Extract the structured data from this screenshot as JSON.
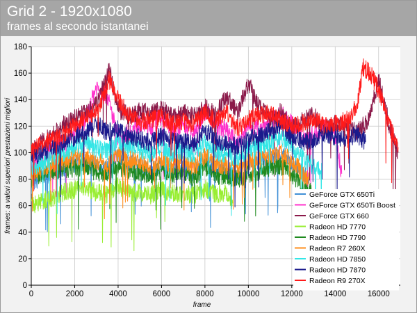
{
  "header": {
    "title": "Grid 2 - 1920x1080",
    "subtitle": "frames al secondo istantanei"
  },
  "chart_data": {
    "type": "line",
    "title": "Grid 2 - 1920x1080",
    "subtitle": "frames al secondo istantanei",
    "xlabel": "frame",
    "ylabel": "frames: a valori superiori prestazioni migliori",
    "xlim": [
      0,
      17000
    ],
    "ylim": [
      0,
      180
    ],
    "xticks": [
      0,
      2000,
      4000,
      6000,
      8000,
      10000,
      12000,
      14000,
      16000
    ],
    "yticks": [
      0,
      20,
      40,
      60,
      80,
      100,
      120,
      140,
      160,
      180
    ],
    "grid": true,
    "legend_position": "bottom-right",
    "series": [
      {
        "name": "GeForce GTX 650Ti",
        "color": "#3f8fd6",
        "x": [
          0,
          500,
          1000,
          1500,
          2000,
          2500,
          3000,
          3500,
          4000,
          4500,
          5000,
          5500,
          6000,
          6500,
          7000,
          7500,
          8000,
          8500,
          9000,
          9500,
          10000,
          10500,
          11000,
          11500,
          12000,
          12500,
          12800
        ],
        "y": [
          76,
          82,
          85,
          88,
          92,
          96,
          90,
          88,
          98,
          93,
          90,
          86,
          91,
          87,
          89,
          84,
          96,
          87,
          86,
          82,
          90,
          93,
          96,
          99,
          92,
          85,
          78
        ]
      },
      {
        "name": "GeForce GTX 650Ti Boost",
        "color": "#ff33cc",
        "x": [
          0,
          500,
          1000,
          1500,
          2000,
          2500,
          3000,
          3500,
          4000,
          4500,
          5000,
          5500,
          6000,
          6500,
          7000,
          7500,
          8000,
          8500,
          9000,
          9500,
          10000,
          10500,
          11000,
          11500,
          12000,
          12500,
          13000,
          13500,
          14000,
          14300
        ],
        "y": [
          90,
          96,
          103,
          108,
          114,
          125,
          150,
          143,
          112,
          115,
          122,
          119,
          128,
          116,
          122,
          115,
          131,
          121,
          117,
          106,
          120,
          119,
          123,
          129,
          122,
          112,
          113,
          120,
          113,
          84
        ]
      },
      {
        "name": "GeForce GTX 660",
        "color": "#8b1a4a",
        "x": [
          0,
          500,
          1000,
          1500,
          2000,
          2500,
          3000,
          3300,
          3600,
          4000,
          4500,
          5000,
          5500,
          6000,
          6500,
          7000,
          7500,
          8000,
          8500,
          9000,
          9500,
          10000,
          10500,
          11000,
          11500,
          12000,
          12500,
          13000,
          13500,
          14000,
          14500,
          15000,
          15500,
          16000,
          16500,
          16900
        ],
        "y": [
          100,
          108,
          114,
          121,
          126,
          130,
          136,
          150,
          163,
          132,
          128,
          131,
          130,
          133,
          127,
          130,
          127,
          134,
          129,
          143,
          130,
          152,
          134,
          126,
          131,
          118,
          124,
          128,
          118,
          122,
          119,
          115,
          124,
          155,
          120,
          100
        ]
      },
      {
        "name": "Radeon HD 7770",
        "color": "#99ee33",
        "x": [
          0,
          500,
          1000,
          1500,
          2000,
          2500,
          3000,
          3500,
          4000,
          4500,
          5000,
          5500,
          6000,
          6500,
          7000,
          7500,
          8000,
          8500,
          9000,
          9300
        ],
        "y": [
          60,
          64,
          66,
          70,
          72,
          74,
          70,
          68,
          75,
          69,
          70,
          68,
          72,
          69,
          70,
          68,
          73,
          69,
          70,
          63
        ]
      },
      {
        "name": "Radeon HD 7790",
        "color": "#1f8a1f",
        "x": [
          0,
          500,
          1000,
          1500,
          2000,
          2500,
          3000,
          3500,
          4000,
          4500,
          5000,
          5500,
          6000,
          6500,
          7000,
          7500,
          8000,
          8500,
          9000,
          9500,
          10000,
          10500,
          11000,
          11500,
          12000,
          12500,
          12900
        ],
        "y": [
          80,
          85,
          86,
          88,
          88,
          90,
          85,
          84,
          90,
          86,
          85,
          82,
          87,
          83,
          85,
          81,
          90,
          83,
          82,
          80,
          84,
          86,
          89,
          90,
          84,
          75,
          70
        ]
      },
      {
        "name": "Radeon R7 260X",
        "color": "#ff8c1a",
        "x": [
          0,
          500,
          1000,
          1500,
          2000,
          2500,
          3000,
          3500,
          4000,
          4500,
          5000,
          5500,
          6000,
          6500,
          7000,
          7500,
          8000,
          8500,
          9000,
          9500,
          10000,
          10500,
          11000,
          11500,
          12000,
          12500,
          12800
        ],
        "y": [
          84,
          88,
          92,
          94,
          96,
          98,
          94,
          92,
          100,
          95,
          94,
          90,
          95,
          91,
          93,
          89,
          98,
          91,
          90,
          88,
          93,
          95,
          98,
          100,
          94,
          85,
          78
        ]
      },
      {
        "name": "Radeon HD 7850",
        "color": "#33e6e6",
        "x": [
          0,
          500,
          1000,
          1500,
          2000,
          2500,
          3000,
          3500,
          4000,
          4500,
          5000,
          5500,
          6000,
          6500,
          7000,
          7500,
          8000,
          8500,
          9000,
          9500,
          10000,
          10500,
          11000,
          11500,
          12000,
          12500,
          13000,
          13400
        ],
        "y": [
          88,
          93,
          97,
          100,
          104,
          108,
          103,
          101,
          110,
          104,
          103,
          99,
          105,
          100,
          102,
          98,
          108,
          100,
          99,
          96,
          102,
          105,
          108,
          112,
          104,
          96,
          90,
          85
        ]
      },
      {
        "name": "Radeon HD 7870",
        "color": "#1a1a8c",
        "x": [
          0,
          500,
          1000,
          1500,
          2000,
          2500,
          3000,
          3500,
          4000,
          4500,
          5000,
          5500,
          6000,
          6500,
          7000,
          7500,
          8000,
          8500,
          9000,
          9500,
          10000,
          10500,
          11000,
          11500,
          12000,
          12500,
          13000,
          13500,
          14000,
          14500,
          15000,
          15400
        ],
        "y": [
          96,
          100,
          104,
          108,
          112,
          116,
          122,
          115,
          118,
          112,
          111,
          107,
          113,
          108,
          110,
          106,
          117,
          109,
          107,
          104,
          110,
          113,
          116,
          120,
          112,
          108,
          110,
          115,
          112,
          110,
          114,
          108
        ]
      },
      {
        "name": "Radeon R9 270X",
        "color": "#ff1a1a",
        "x": [
          0,
          500,
          1000,
          1500,
          2000,
          2500,
          3000,
          3300,
          3600,
          4000,
          4500,
          5000,
          5500,
          6000,
          6500,
          7000,
          7500,
          8000,
          8500,
          9000,
          9500,
          10000,
          10500,
          11000,
          11500,
          12000,
          12500,
          13000,
          13500,
          14000,
          14500,
          15000,
          15300,
          15600,
          16000,
          16500,
          16900
        ],
        "y": [
          102,
          106,
          110,
          114,
          120,
          126,
          132,
          142,
          155,
          140,
          128,
          123,
          125,
          127,
          121,
          124,
          121,
          131,
          124,
          130,
          118,
          125,
          128,
          130,
          124,
          120,
          122,
          126,
          120,
          122,
          124,
          135,
          165,
          160,
          148,
          120,
          104
        ]
      }
    ]
  }
}
